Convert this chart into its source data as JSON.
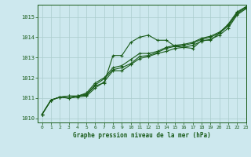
{
  "title": "Graphe pression niveau de la mer (hPa)",
  "bg_color": "#cde8ee",
  "grid_color": "#aacccc",
  "line_color": "#1a5c1a",
  "xlim": [
    -0.5,
    23
  ],
  "ylim": [
    1009.8,
    1015.6
  ],
  "yticks": [
    1010,
    1011,
    1012,
    1013,
    1014,
    1015
  ],
  "xticks": [
    0,
    1,
    2,
    3,
    4,
    5,
    6,
    7,
    8,
    9,
    10,
    11,
    12,
    13,
    14,
    15,
    16,
    17,
    18,
    19,
    20,
    21,
    22,
    23
  ],
  "line1": [
    1010.2,
    1010.9,
    1011.05,
    1011.0,
    1011.1,
    1011.15,
    1011.6,
    1011.75,
    1013.1,
    1013.1,
    1013.75,
    1014.0,
    1014.1,
    1013.85,
    1013.85,
    1013.55,
    1013.5,
    1013.45,
    1013.85,
    1013.85,
    1014.2,
    1014.65,
    1015.25,
    1015.5
  ],
  "line2": [
    1010.2,
    1010.9,
    1011.05,
    1011.0,
    1011.05,
    1011.1,
    1011.5,
    1011.8,
    1012.35,
    1012.35,
    1012.65,
    1012.95,
    1013.05,
    1013.2,
    1013.3,
    1013.45,
    1013.5,
    1013.6,
    1013.8,
    1013.9,
    1014.1,
    1014.45,
    1015.1,
    1015.4
  ],
  "line3": [
    1010.2,
    1010.9,
    1011.05,
    1011.1,
    1011.1,
    1011.2,
    1011.65,
    1011.95,
    1012.4,
    1012.5,
    1012.7,
    1013.05,
    1013.1,
    1013.25,
    1013.45,
    1013.55,
    1013.6,
    1013.7,
    1013.9,
    1014.0,
    1014.2,
    1014.55,
    1015.15,
    1015.45
  ],
  "line4": [
    1010.2,
    1010.9,
    1011.05,
    1011.1,
    1011.1,
    1011.25,
    1011.75,
    1012.0,
    1012.5,
    1012.6,
    1012.9,
    1013.2,
    1013.2,
    1013.3,
    1013.5,
    1013.6,
    1013.65,
    1013.75,
    1013.95,
    1014.05,
    1014.25,
    1014.6,
    1015.2,
    1015.5
  ]
}
